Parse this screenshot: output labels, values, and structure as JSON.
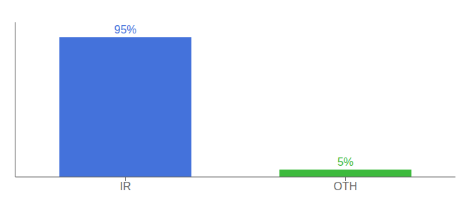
{
  "chart_data": {
    "type": "bar",
    "categories": [
      "IR",
      "OTH"
    ],
    "values": [
      95,
      5
    ],
    "value_labels": [
      "95%",
      "5%"
    ],
    "colors": [
      "#4472db",
      "#3dba3d"
    ],
    "ylim": [
      0,
      105
    ],
    "grid": false,
    "data_labels": true,
    "tick_labels": "x"
  }
}
